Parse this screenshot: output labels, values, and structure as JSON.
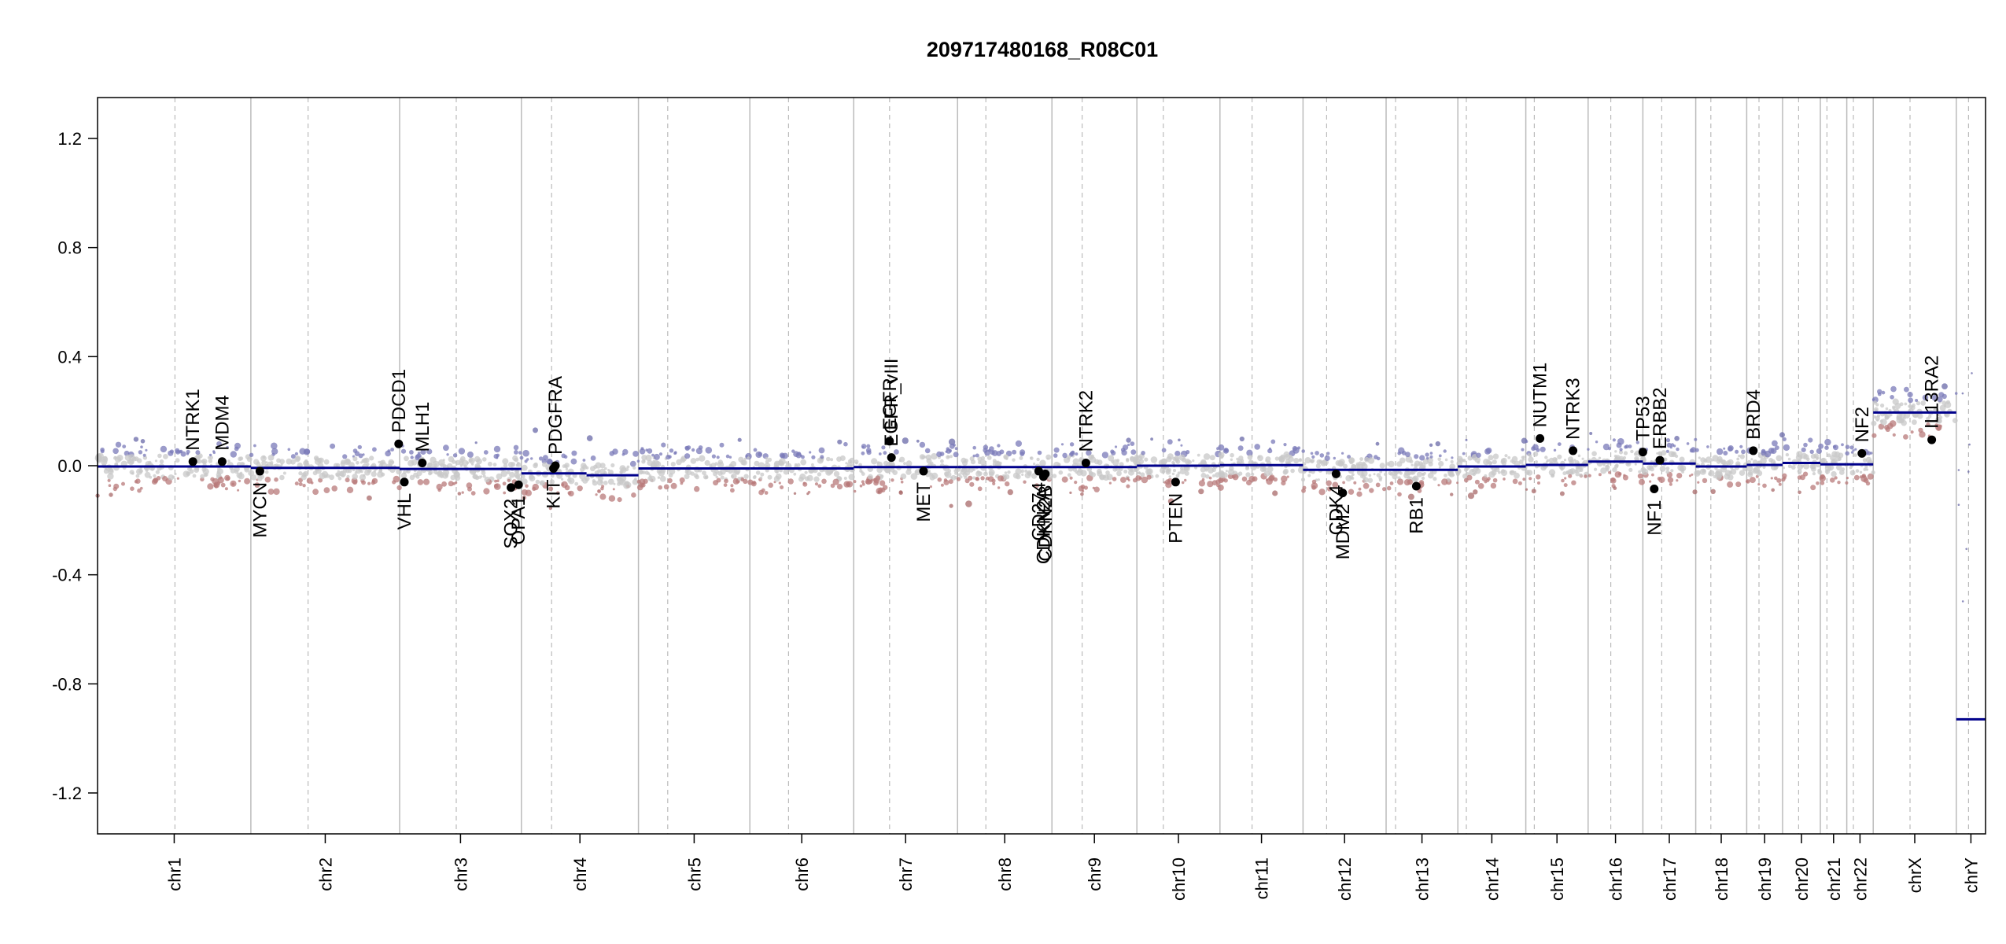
{
  "chart_data": {
    "type": "scatter",
    "title": "209717480168_R08C01",
    "xlabel": "",
    "ylabel": "",
    "ylim": [
      -1.35,
      1.35
    ],
    "y_ticks": [
      -1.2,
      -0.8,
      -0.4,
      0.0,
      0.4,
      0.8,
      1.2
    ],
    "y_tick_labels": [
      "-1.2",
      "-0.8",
      "-0.4",
      "0.0",
      "0.4",
      "0.8",
      "1.2"
    ],
    "grid": false,
    "colors": {
      "gain": "#7a7ab8",
      "loss": "#b87a7a",
      "neutral": "#c8c8c8",
      "segment": "#00008b",
      "gene_dot": "#000000",
      "separator": "#bbbbbb"
    },
    "chromosomes": [
      {
        "name": "chr1",
        "start": 0,
        "end": 0.0812,
        "centromere": 0.041
      },
      {
        "name": "chr2",
        "start": 0.0812,
        "end": 0.16,
        "centromere": 0.1115
      },
      {
        "name": "chr3",
        "start": 0.16,
        "end": 0.2245,
        "centromere": 0.19
      },
      {
        "name": "chr4",
        "start": 0.2245,
        "end": 0.2865,
        "centromere": 0.2405
      },
      {
        "name": "chr5",
        "start": 0.2865,
        "end": 0.3455,
        "centromere": 0.302
      },
      {
        "name": "chr6",
        "start": 0.3455,
        "end": 0.4005,
        "centromere": 0.366
      },
      {
        "name": "chr7",
        "start": 0.4005,
        "end": 0.4555,
        "centromere": 0.4195
      },
      {
        "name": "chr8",
        "start": 0.4555,
        "end": 0.5055,
        "centromere": 0.4705
      },
      {
        "name": "chr9",
        "start": 0.5055,
        "end": 0.5505,
        "centromere": 0.5215
      },
      {
        "name": "chr10",
        "start": 0.5505,
        "end": 0.5945,
        "centromere": 0.5645
      },
      {
        "name": "chr11",
        "start": 0.5945,
        "end": 0.6385,
        "centromere": 0.6115
      },
      {
        "name": "chr12",
        "start": 0.6385,
        "end": 0.6825,
        "centromere": 0.651
      },
      {
        "name": "chr13",
        "start": 0.6825,
        "end": 0.7205,
        "centromere": 0.6875
      },
      {
        "name": "chr14",
        "start": 0.7205,
        "end": 0.7565,
        "centromere": 0.725
      },
      {
        "name": "chr15",
        "start": 0.7565,
        "end": 0.7895,
        "centromere": 0.761
      },
      {
        "name": "chr16",
        "start": 0.7895,
        "end": 0.8185,
        "centromere": 0.8015
      },
      {
        "name": "chr17",
        "start": 0.8185,
        "end": 0.8465,
        "centromere": 0.8285
      },
      {
        "name": "chr18",
        "start": 0.8465,
        "end": 0.8735,
        "centromere": 0.8545
      },
      {
        "name": "chr19",
        "start": 0.8735,
        "end": 0.8925,
        "centromere": 0.88
      },
      {
        "name": "chr20",
        "start": 0.8925,
        "end": 0.9125,
        "centromere": 0.901
      },
      {
        "name": "chr21",
        "start": 0.9125,
        "end": 0.9265,
        "centromere": 0.916
      },
      {
        "name": "chr22",
        "start": 0.9265,
        "end": 0.9405,
        "centromere": 0.93
      },
      {
        "name": "chrX",
        "start": 0.9405,
        "end": 0.9845,
        "centromere": 0.96
      },
      {
        "name": "chrY",
        "start": 0.9845,
        "end": 1.0,
        "centromere": 0.991
      }
    ],
    "segments": [
      {
        "start": 0,
        "end": 0.0812,
        "value": -0.003
      },
      {
        "start": 0.0812,
        "end": 0.16,
        "value": -0.008
      },
      {
        "start": 0.16,
        "end": 0.2245,
        "value": -0.012
      },
      {
        "start": 0.2245,
        "end": 0.259,
        "value": -0.028
      },
      {
        "start": 0.259,
        "end": 0.2865,
        "value": -0.035
      },
      {
        "start": 0.2865,
        "end": 0.3455,
        "value": -0.01
      },
      {
        "start": 0.3455,
        "end": 0.4005,
        "value": -0.01
      },
      {
        "start": 0.4005,
        "end": 0.4555,
        "value": -0.005
      },
      {
        "start": 0.4555,
        "end": 0.5055,
        "value": -0.005
      },
      {
        "start": 0.5055,
        "end": 0.5505,
        "value": -0.005
      },
      {
        "start": 0.5505,
        "end": 0.5945,
        "value": 0.0
      },
      {
        "start": 0.5945,
        "end": 0.6385,
        "value": 0.002
      },
      {
        "start": 0.6385,
        "end": 0.6825,
        "value": -0.015
      },
      {
        "start": 0.6825,
        "end": 0.7205,
        "value": -0.015
      },
      {
        "start": 0.7205,
        "end": 0.7565,
        "value": -0.003
      },
      {
        "start": 0.7565,
        "end": 0.7895,
        "value": 0.003
      },
      {
        "start": 0.7895,
        "end": 0.8185,
        "value": 0.015
      },
      {
        "start": 0.8185,
        "end": 0.8465,
        "value": 0.008
      },
      {
        "start": 0.8465,
        "end": 0.8735,
        "value": -0.003
      },
      {
        "start": 0.8735,
        "end": 0.8925,
        "value": 0.003
      },
      {
        "start": 0.8925,
        "end": 0.9125,
        "value": 0.01
      },
      {
        "start": 0.9125,
        "end": 0.9265,
        "value": 0.005
      },
      {
        "start": 0.9265,
        "end": 0.9405,
        "value": 0.005
      },
      {
        "start": 0.9405,
        "end": 0.9845,
        "value": 0.195
      },
      {
        "start": 0.9845,
        "end": 1.0,
        "value": -0.93
      }
    ],
    "genes": [
      {
        "name": "NTRK1",
        "x": 0.0505,
        "value": 0.015,
        "label": "above"
      },
      {
        "name": "MDM4",
        "x": 0.066,
        "value": 0.015,
        "label": "above"
      },
      {
        "name": "MYCN",
        "x": 0.086,
        "value": -0.02,
        "label": "below"
      },
      {
        "name": "PDCD1",
        "x": 0.1595,
        "value": 0.08,
        "label": "above"
      },
      {
        "name": "VHL",
        "x": 0.1625,
        "value": -0.06,
        "label": "below"
      },
      {
        "name": "MLH1",
        "x": 0.172,
        "value": 0.01,
        "label": "above"
      },
      {
        "name": "SOX2",
        "x": 0.219,
        "value": -0.08,
        "label": "below"
      },
      {
        "name": "OPA1",
        "x": 0.223,
        "value": -0.07,
        "label": "below"
      },
      {
        "name": "KIT",
        "x": 0.2415,
        "value": -0.01,
        "label": "below"
      },
      {
        "name": "PDGFRA",
        "x": 0.2425,
        "value": 0.0,
        "label": "above"
      },
      {
        "name": "EGFR",
        "x": 0.4195,
        "value": 0.09,
        "label": "above"
      },
      {
        "name": "EGFR_vIII",
        "x": 0.4205,
        "value": 0.03,
        "label": "above"
      },
      {
        "name": "MET",
        "x": 0.4375,
        "value": -0.02,
        "label": "below"
      },
      {
        "name": "CD274",
        "x": 0.4985,
        "value": -0.02,
        "label": "below"
      },
      {
        "name": "CDKN2A",
        "x": 0.501,
        "value": -0.04,
        "label": "below"
      },
      {
        "name": "CDKN2B",
        "x": 0.502,
        "value": -0.03,
        "label": "below"
      },
      {
        "name": "NTRK2",
        "x": 0.5235,
        "value": 0.01,
        "label": "above"
      },
      {
        "name": "PTEN",
        "x": 0.571,
        "value": -0.06,
        "label": "below"
      },
      {
        "name": "CDK4",
        "x": 0.656,
        "value": -0.03,
        "label": "below"
      },
      {
        "name": "MDM2",
        "x": 0.6595,
        "value": -0.1,
        "label": "below"
      },
      {
        "name": "RB1",
        "x": 0.6985,
        "value": -0.075,
        "label": "below"
      },
      {
        "name": "NUTM1",
        "x": 0.764,
        "value": 0.1,
        "label": "above"
      },
      {
        "name": "NTRK3",
        "x": 0.7815,
        "value": 0.055,
        "label": "above"
      },
      {
        "name": "TP53",
        "x": 0.8185,
        "value": 0.05,
        "label": "above"
      },
      {
        "name": "NF1",
        "x": 0.8245,
        "value": -0.085,
        "label": "below"
      },
      {
        "name": "ERBB2",
        "x": 0.8275,
        "value": 0.02,
        "label": "above"
      },
      {
        "name": "BRD4",
        "x": 0.877,
        "value": 0.055,
        "label": "above"
      },
      {
        "name": "NF2",
        "x": 0.9345,
        "value": 0.045,
        "label": "above"
      },
      {
        "name": "IL13RA2",
        "x": 0.9715,
        "value": 0.095,
        "label": "above"
      }
    ]
  }
}
